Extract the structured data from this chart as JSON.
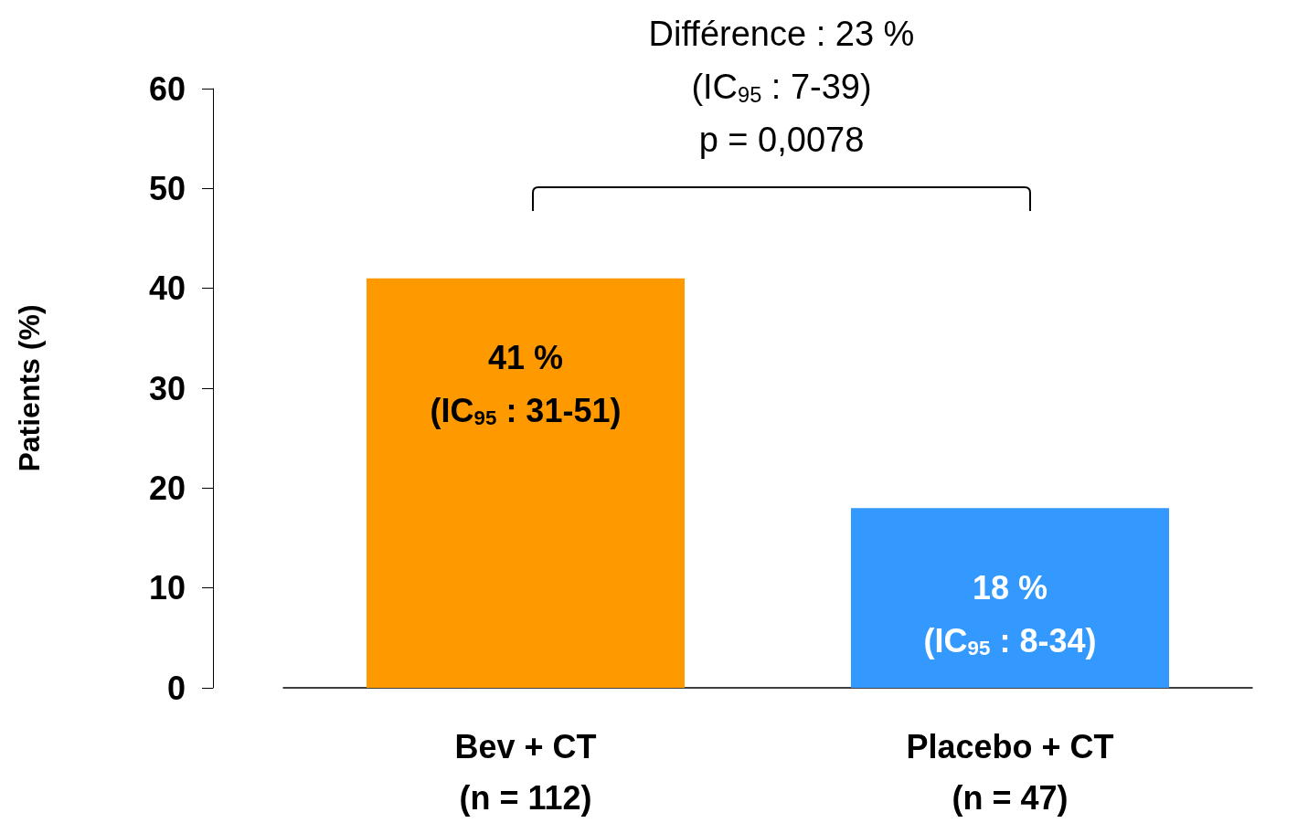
{
  "chart_data": {
    "type": "bar",
    "ylabel": "Patients (%)",
    "categories": [
      "Bev + CT\n(n = 112)",
      "Placebo + CT\n(n = 47)"
    ],
    "values": [
      41,
      18
    ],
    "colors": [
      "#ff9900",
      "#3399ff"
    ],
    "value_labels": [
      "41 %\n(IC$_{95}$ : 31-51)",
      "18 %\n(IC$_{95}$ : 8-34)"
    ],
    "ylim": [
      0,
      60
    ],
    "yticks": [
      0,
      10,
      20,
      30,
      40,
      50,
      60
    ],
    "grid": false,
    "annotations": [
      "Différence : 23 %\n(IC$_{95}$ : 7-39)\np = 0,0078"
    ]
  }
}
